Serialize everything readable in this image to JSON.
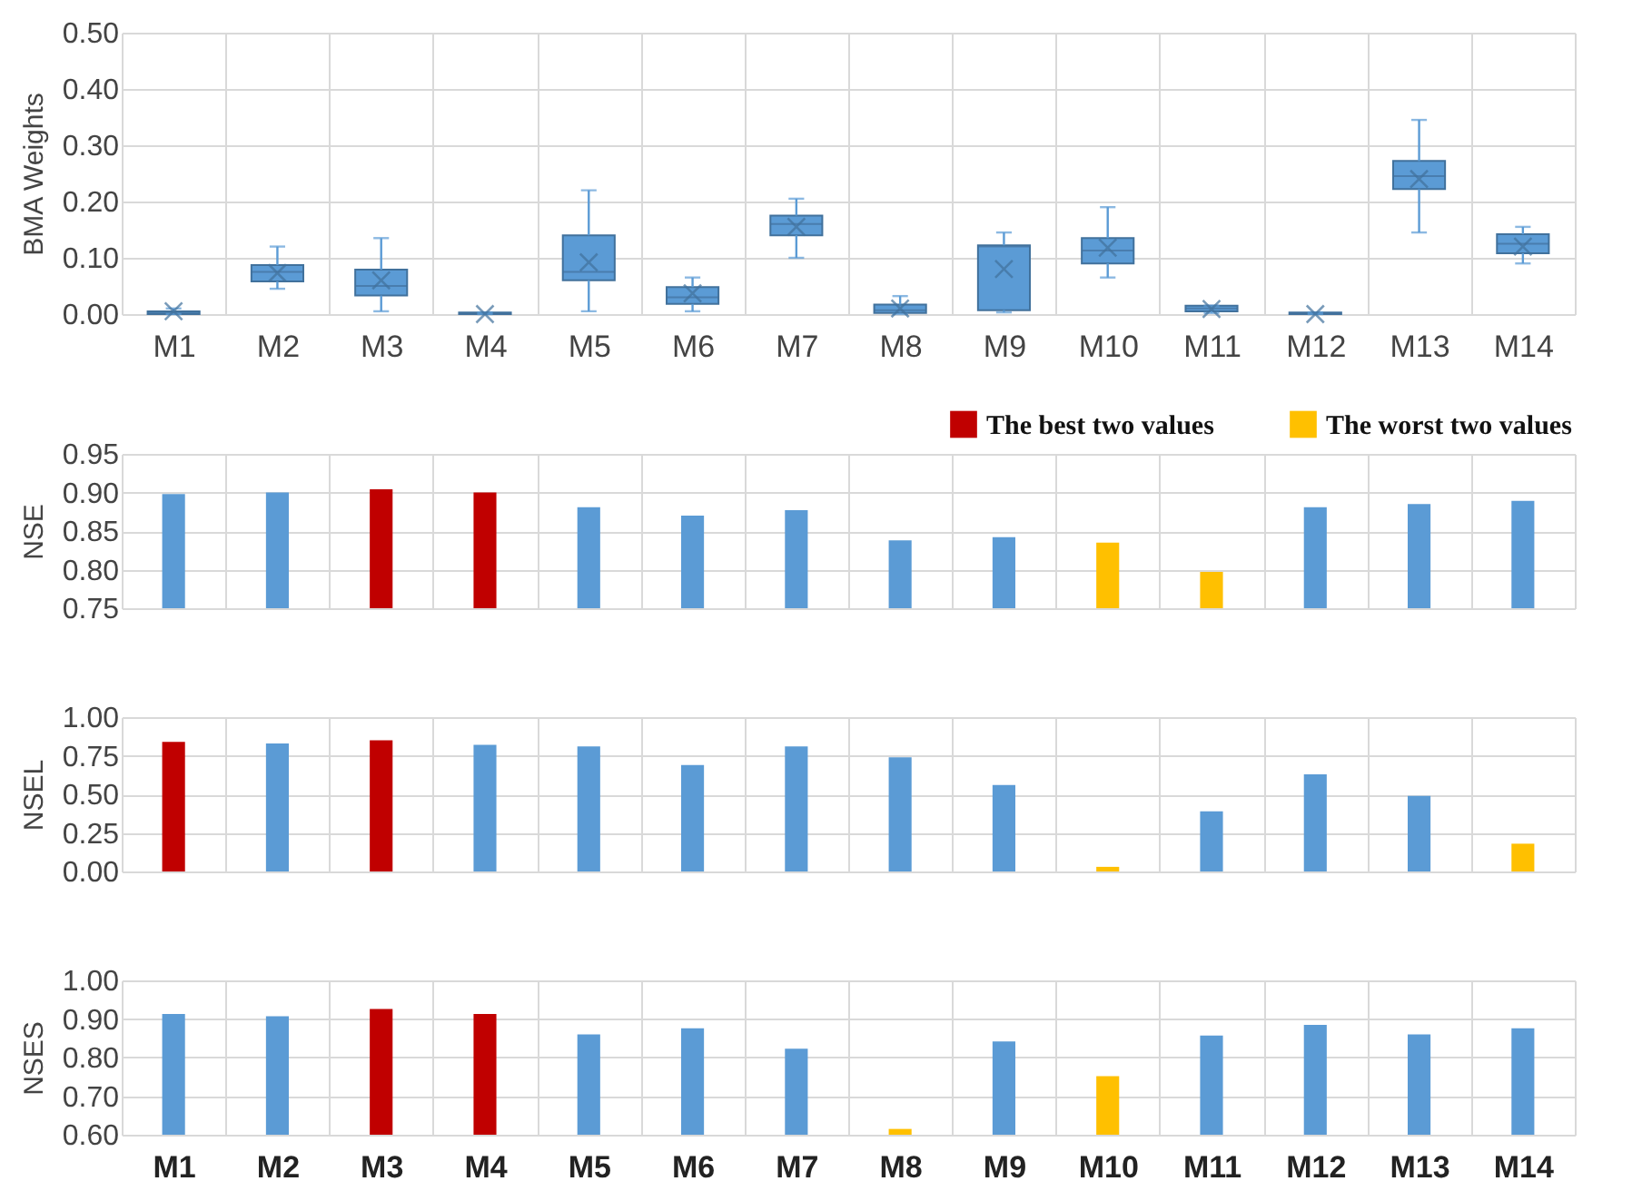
{
  "chart_data": [
    {
      "type": "box",
      "ylabel": "BMA Weights",
      "categories": [
        "M1",
        "M2",
        "M3",
        "M4",
        "M5",
        "M6",
        "M7",
        "M8",
        "M9",
        "M10",
        "M11",
        "M12",
        "M13",
        "M14"
      ],
      "ylim": [
        0,
        0.5
      ],
      "yticks": [
        {
          "value": 0,
          "label": "0.00"
        },
        {
          "value": 0.1,
          "label": "0.10"
        },
        {
          "value": 0.2,
          "label": "0.20"
        },
        {
          "value": 0.3,
          "label": "0.30"
        },
        {
          "value": 0.4,
          "label": "0.40"
        },
        {
          "value": 0.5,
          "label": "0.50"
        }
      ],
      "grid": true,
      "color": "#5b9bd5",
      "boxes": [
        {
          "low": 0,
          "q1": 0,
          "median": 0.002,
          "q3": 0.005,
          "high": 0.01,
          "mean": 0.005
        },
        {
          "low": 0.045,
          "q1": 0.058,
          "median": 0.075,
          "q3": 0.087,
          "high": 0.12,
          "mean": 0.073
        },
        {
          "low": 0.005,
          "q1": 0.033,
          "median": 0.05,
          "q3": 0.079,
          "high": 0.135,
          "mean": 0.06
        },
        {
          "low": 0,
          "q1": 0,
          "median": 0,
          "q3": 0.003,
          "high": 0.003,
          "mean": 0
        },
        {
          "low": 0.005,
          "q1": 0.06,
          "median": 0.075,
          "q3": 0.14,
          "high": 0.22,
          "mean": 0.092
        },
        {
          "low": 0.005,
          "q1": 0.018,
          "median": 0.03,
          "q3": 0.048,
          "high": 0.065,
          "mean": 0.037
        },
        {
          "low": 0.1,
          "q1": 0.14,
          "median": 0.16,
          "q3": 0.175,
          "high": 0.205,
          "mean": 0.155
        },
        {
          "low": 0,
          "q1": 0.002,
          "median": 0.007,
          "q3": 0.017,
          "high": 0.032,
          "mean": 0.01
        },
        {
          "low": 0.003,
          "q1": 0.007,
          "median": 0.12,
          "q3": 0.122,
          "high": 0.145,
          "mean": 0.08
        },
        {
          "low": 0.065,
          "q1": 0.09,
          "median": 0.113,
          "q3": 0.135,
          "high": 0.19,
          "mean": 0.118
        },
        {
          "low": 0.002,
          "q1": 0.005,
          "median": 0.01,
          "q3": 0.015,
          "high": 0.015,
          "mean": 0.009
        },
        {
          "low": 0,
          "q1": 0,
          "median": 0.001,
          "q3": 0.003,
          "high": 0.003,
          "mean": 0
        },
        {
          "low": 0.145,
          "q1": 0.222,
          "median": 0.245,
          "q3": 0.272,
          "high": 0.345,
          "mean": 0.24
        },
        {
          "low": 0.09,
          "q1": 0.108,
          "median": 0.125,
          "q3": 0.142,
          "high": 0.155,
          "mean": 0.12
        }
      ]
    },
    {
      "type": "bar",
      "ylabel": "NSE",
      "categories": [
        null,
        null,
        null,
        null,
        null,
        null,
        null,
        null,
        null,
        null,
        null,
        null,
        null,
        null
      ],
      "ylim": [
        0.75,
        0.95
      ],
      "yticks": [
        {
          "value": 0.75,
          "label": "0.75"
        },
        {
          "value": 0.8,
          "label": "0.80"
        },
        {
          "value": 0.85,
          "label": "0.85"
        },
        {
          "value": 0.9,
          "label": "0.90"
        },
        {
          "value": 0.95,
          "label": "0.95"
        }
      ],
      "grid": true,
      "legend": "top right",
      "series": [
        {
          "color": "#5b9bd5",
          "values": [
            0.898,
            0.9,
            null,
            null,
            0.881,
            0.87,
            0.877,
            0.838,
            0.842,
            null,
            null,
            0.881,
            0.885,
            0.889
          ]
        },
        {
          "name": "The best two values",
          "color": "#c00000",
          "values": [
            null,
            null,
            0.904,
            0.9,
            null,
            null,
            null,
            null,
            null,
            null,
            null,
            null,
            null,
            null
          ]
        },
        {
          "name": "The worst two values",
          "color": "#ffc000",
          "values": [
            null,
            null,
            null,
            null,
            null,
            null,
            null,
            null,
            null,
            0.835,
            0.797,
            null,
            null,
            null
          ]
        }
      ]
    },
    {
      "type": "bar",
      "ylabel": "NSEL",
      "categories": [
        null,
        null,
        null,
        null,
        null,
        null,
        null,
        null,
        null,
        null,
        null,
        null,
        null,
        null
      ],
      "ylim": [
        0,
        1
      ],
      "yticks": [
        {
          "value": 0,
          "label": "0.00"
        },
        {
          "value": 0.25,
          "label": "0.25"
        },
        {
          "value": 0.5,
          "label": "0.50"
        },
        {
          "value": 0.75,
          "label": "0.75"
        },
        {
          "value": 1,
          "label": "1.00"
        }
      ],
      "grid": true,
      "values": [
        0.84,
        0.83,
        0.85,
        0.82,
        0.81,
        0.69,
        0.81,
        0.74,
        0.56,
        0.03,
        0.39,
        0.63,
        0.49,
        0.18
      ],
      "colors": [
        "#c00000",
        "#5b9bd5",
        "#c00000",
        "#5b9bd5",
        "#5b9bd5",
        "#5b9bd5",
        "#5b9bd5",
        "#5b9bd5",
        "#5b9bd5",
        "#ffc000",
        "#5b9bd5",
        "#5b9bd5",
        "#5b9bd5",
        "#ffc000"
      ]
    },
    {
      "type": "bar",
      "ylabel": "NSES",
      "categories": [
        "M1",
        "M2",
        "M3",
        "M4",
        "M5",
        "M6",
        "M7",
        "M8",
        "M9",
        "M10",
        "M11",
        "M12",
        "M13",
        "M14"
      ],
      "ylim": [
        0.6,
        1
      ],
      "yticks": [
        {
          "value": 0.6,
          "label": "0.60"
        },
        {
          "value": 0.7,
          "label": "0.70"
        },
        {
          "value": 0.8,
          "label": "0.80"
        },
        {
          "value": 0.9,
          "label": "0.90"
        },
        {
          "value": 1,
          "label": "1.00"
        }
      ],
      "grid": true,
      "values": [
        0.913,
        0.907,
        0.926,
        0.913,
        0.86,
        0.876,
        0.823,
        0.615,
        0.842,
        0.752,
        0.857,
        0.885,
        0.86,
        0.876
      ],
      "colors": [
        "#5b9bd5",
        "#5b9bd5",
        "#c00000",
        "#c00000",
        "#5b9bd5",
        "#5b9bd5",
        "#5b9bd5",
        "#ffc000",
        "#5b9bd5",
        "#ffc000",
        "#5b9bd5",
        "#5b9bd5",
        "#5b9bd5",
        "#5b9bd5"
      ]
    }
  ]
}
